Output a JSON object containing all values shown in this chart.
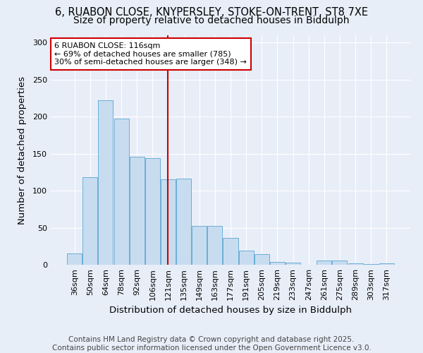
{
  "title_line1": "6, RUABON CLOSE, KNYPERSLEY, STOKE-ON-TRENT, ST8 7XE",
  "title_line2": "Size of property relative to detached houses in Biddulph",
  "xlabel": "Distribution of detached houses by size in Biddulph",
  "ylabel": "Number of detached properties",
  "categories": [
    "36sqm",
    "50sqm",
    "64sqm",
    "78sqm",
    "92sqm",
    "106sqm",
    "121sqm",
    "135sqm",
    "149sqm",
    "163sqm",
    "177sqm",
    "191sqm",
    "205sqm",
    "219sqm",
    "233sqm",
    "247sqm",
    "261sqm",
    "275sqm",
    "289sqm",
    "303sqm",
    "317sqm"
  ],
  "values": [
    15,
    118,
    222,
    197,
    146,
    144,
    115,
    116,
    52,
    52,
    36,
    19,
    14,
    4,
    3,
    0,
    6,
    6,
    2,
    1,
    2
  ],
  "bar_color": "#c8dcf0",
  "bar_edge_color": "#6aaed6",
  "vline_x": 6.0,
  "vline_color": "#cc0000",
  "annotation_text": "6 RUABON CLOSE: 116sqm\n← 69% of detached houses are smaller (785)\n30% of semi-detached houses are larger (348) →",
  "annotation_box_color": "white",
  "annotation_box_edge": "#cc0000",
  "ylim": [
    0,
    310
  ],
  "yticks": [
    0,
    50,
    100,
    150,
    200,
    250,
    300
  ],
  "background_color": "#e8eef8",
  "footer_text": "Contains HM Land Registry data © Crown copyright and database right 2025.\nContains public sector information licensed under the Open Government Licence v3.0.",
  "title_fontsize": 10.5,
  "subtitle_fontsize": 10,
  "axis_label_fontsize": 9.5,
  "tick_fontsize": 8,
  "annotation_fontsize": 8,
  "footer_fontsize": 7.5
}
